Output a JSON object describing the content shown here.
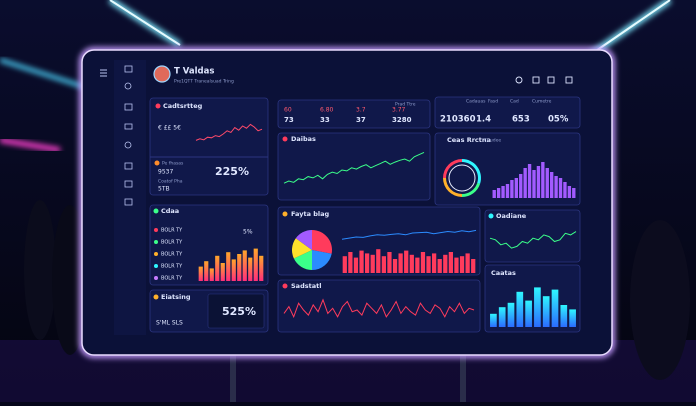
{
  "header": {
    "title": "T Valdas",
    "subtitle": "Pre1QTT Tranealsuad Tring"
  },
  "revenue": {
    "title": "Cadtsrtteg",
    "row": "€ ££ 5€",
    "line": [
      30,
      35,
      32,
      40,
      38,
      45,
      42,
      50,
      60,
      55,
      70,
      62,
      75,
      68,
      80,
      72,
      60,
      65
    ]
  },
  "stats_a": {
    "label": "Prad Ttre",
    "top": [
      "60",
      "6.80",
      "3.7",
      "3.77"
    ],
    "bottom": [
      "73",
      "33",
      "37",
      "3280"
    ]
  },
  "stats_b": {
    "labels": [
      "Cadauas",
      "Fasd",
      "Cad",
      "Cumetre"
    ],
    "values": [
      "210360",
      "1.4",
      "653",
      "05%"
    ]
  },
  "daily": {
    "title": "Daibas",
    "line": [
      20,
      25,
      22,
      30,
      28,
      35,
      32,
      38,
      30,
      40,
      45,
      42,
      50,
      48,
      55,
      52,
      58,
      62,
      55,
      60,
      65,
      70,
      63,
      68,
      72,
      75,
      70,
      80,
      85,
      90
    ]
  },
  "gauge": {
    "title": "Ceas Rrctna",
    "tag": "Ceudee",
    "donut": [
      30,
      20,
      25,
      25
    ],
    "bars": [
      20,
      25,
      30,
      35,
      45,
      50,
      60,
      75,
      85,
      70,
      80,
      90,
      75,
      65,
      55,
      50,
      40,
      30,
      25
    ]
  },
  "perf": {
    "title": "Pe fhasas",
    "rows": [
      "9537",
      "Coatof Pha",
      "5TB"
    ],
    "value": "225%"
  },
  "list": {
    "title": "Cdaa",
    "items": [
      "BOLR TY",
      "BOLR TY",
      "BOLR TY",
      "BOLR TY",
      "BOLR TY"
    ],
    "value": "5%",
    "bars": [
      40,
      55,
      35,
      70,
      50,
      80,
      60,
      75,
      85,
      65,
      90,
      70
    ]
  },
  "fayta": {
    "title": "Fayta blag",
    "pie": [
      28,
      22,
      18,
      17,
      15
    ],
    "bars": [
      60,
      75,
      55,
      80,
      70,
      65,
      85,
      60,
      75,
      50,
      70,
      80,
      65,
      55,
      75,
      60,
      70,
      50,
      65,
      75,
      55,
      60,
      70,
      50
    ],
    "line": [
      40,
      45,
      50,
      48,
      55,
      60,
      58,
      62,
      65,
      60,
      68,
      70,
      72,
      65,
      70,
      75,
      72,
      78,
      74,
      80
    ]
  },
  "oadiane": {
    "title": "Oadiane",
    "line": [
      60,
      55,
      40,
      45,
      30,
      35,
      50,
      45,
      60,
      55,
      70,
      65,
      50,
      55,
      75,
      70,
      80
    ]
  },
  "sadstatl": {
    "title": "Sadstatl",
    "line": [
      40,
      60,
      30,
      70,
      50,
      35,
      65,
      45,
      80,
      40,
      55,
      30,
      60,
      75,
      45,
      50,
      35,
      70,
      55,
      40,
      65,
      30,
      50,
      75,
      40,
      60,
      45,
      35,
      70,
      50,
      40,
      65,
      55,
      30,
      60,
      45,
      70,
      40,
      55,
      50
    ]
  },
  "caatas": {
    "title": "Caatas",
    "bars": [
      30,
      45,
      55,
      80,
      60,
      90,
      70,
      85,
      50,
      40
    ]
  },
  "eiatsing": {
    "title": "Eiatsing",
    "value": "525%",
    "row": "S'ML SLS"
  }
}
